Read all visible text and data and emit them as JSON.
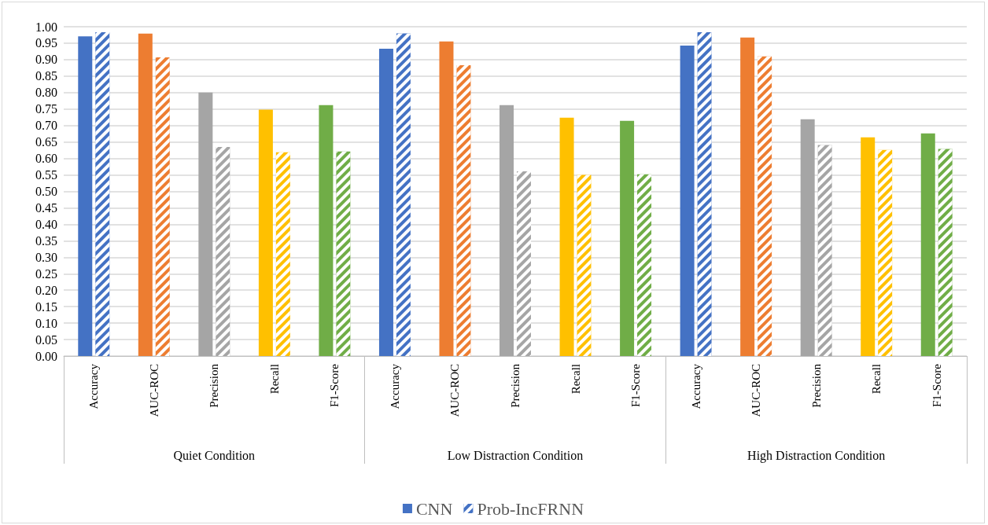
{
  "chart_data": {
    "type": "bar",
    "categories": [
      "Accuracy",
      "AUC-ROC",
      "Precision",
      "Recall",
      "F1-Score",
      "Accuracy",
      "AUC-ROC",
      "Precision",
      "Recall",
      "F1-Score",
      "Accuracy",
      "AUC-ROC",
      "Precision",
      "Recall",
      "F1-Score"
    ],
    "annotations": [
      "Quiet Condition",
      "Low Distraction Condition",
      "High Distraction Condition"
    ],
    "series": [
      {
        "name": "CNN",
        "colors": [
          "#4472c4",
          "#ed7d31",
          "#a5a5a5",
          "#ffc000",
          "#70ad47",
          "#4472c4",
          "#ed7d31",
          "#a5a5a5",
          "#ffc000",
          "#70ad47",
          "#4472c4",
          "#ed7d31",
          "#a5a5a5",
          "#ffc000",
          "#70ad47"
        ],
        "values": [
          0.971,
          0.979,
          0.8,
          0.748,
          0.762,
          0.933,
          0.955,
          0.762,
          0.724,
          0.714,
          0.943,
          0.967,
          0.719,
          0.664,
          0.676
        ]
      },
      {
        "name": "Prob-IncFRNN",
        "colors": [
          "#4472c4",
          "#ed7d31",
          "#a5a5a5",
          "#ffc000",
          "#70ad47",
          "#4472c4",
          "#ed7d31",
          "#a5a5a5",
          "#ffc000",
          "#70ad47",
          "#4472c4",
          "#ed7d31",
          "#a5a5a5",
          "#ffc000",
          "#70ad47"
        ],
        "values": [
          0.983,
          0.907,
          0.635,
          0.619,
          0.621,
          0.98,
          0.883,
          0.561,
          0.55,
          0.552,
          0.983,
          0.91,
          0.641,
          0.626,
          0.629
        ]
      }
    ],
    "ylim": [
      0,
      1
    ],
    "yticks": [
      {
        "value": 0,
        "label": "0.00"
      },
      0.05,
      {
        "value": 0.1,
        "label": "0.10"
      },
      0.15,
      {
        "value": 0.2,
        "label": "0.20"
      },
      0.25,
      {
        "value": 0.3,
        "label": "0.30"
      },
      0.35,
      {
        "value": 0.4,
        "label": "0.40"
      },
      0.45,
      {
        "value": 0.5,
        "label": "0.50"
      },
      0.55,
      {
        "value": 0.6,
        "label": "0.60"
      },
      0.65,
      {
        "value": 0.7,
        "label": "0.70"
      },
      0.75,
      {
        "value": 0.8,
        "label": "0.80"
      },
      0.85,
      {
        "value": 0.9,
        "label": "0.90"
      },
      0.95,
      {
        "value": 1,
        "label": "1.00"
      }
    ],
    "grid": "y",
    "legend": "bottom"
  }
}
